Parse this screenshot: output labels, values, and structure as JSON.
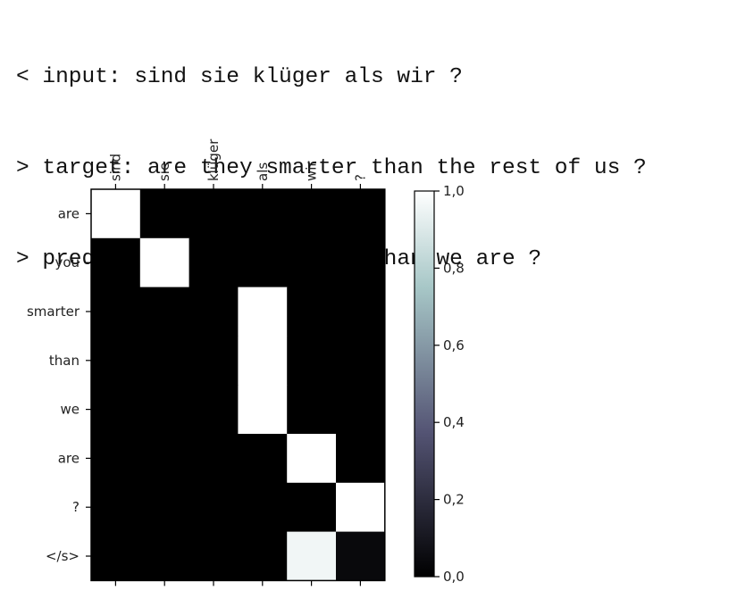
{
  "console": {
    "lines": [
      {
        "prefix": "<",
        "key": "input:",
        "text": "sind sie klüger als wir ?"
      },
      {
        "prefix": ">",
        "key": "target:",
        "text": "are they smarter than the rest of us ?"
      },
      {
        "prefix": ">",
        "key": "predict:",
        "text": "are you smarter than we are ?"
      }
    ]
  },
  "chart_data": {
    "type": "heatmap",
    "x_labels": [
      "sind",
      "sie",
      "klüger",
      "als",
      "wir",
      "?"
    ],
    "y_labels": [
      "are",
      "you",
      "smarter",
      "than",
      "we",
      "are",
      "?",
      "</s>"
    ],
    "values": [
      [
        1,
        0,
        0,
        0,
        0,
        0
      ],
      [
        0,
        1,
        0,
        0,
        0,
        0
      ],
      [
        0,
        0,
        0,
        1,
        0,
        0
      ],
      [
        0,
        0,
        0,
        1,
        0,
        0
      ],
      [
        0,
        0,
        0,
        1,
        0,
        0
      ],
      [
        0,
        0,
        0,
        0,
        1,
        0
      ],
      [
        0,
        0,
        0,
        0,
        0,
        1
      ],
      [
        0,
        0,
        0,
        0,
        0.96,
        0.04
      ]
    ],
    "colormap": "bone",
    "colorbar": {
      "range": [
        0.0,
        1.0
      ],
      "ticks": [
        "0,0",
        "0,2",
        "0,4",
        "0,6",
        "0,8",
        "1,0"
      ]
    }
  }
}
